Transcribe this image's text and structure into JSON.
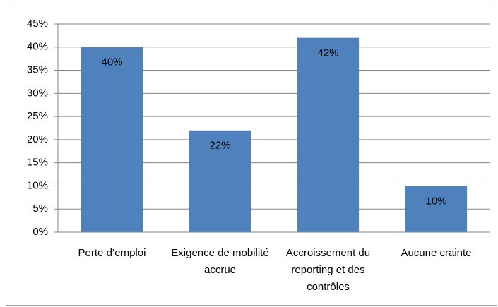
{
  "chart_data": {
    "type": "bar",
    "categories": [
      "Perte d’emploi",
      "Exigence de mobilité accrue",
      "Accroissement du reporting et des contrôles",
      "Aucune crainte"
    ],
    "values": [
      40,
      22,
      42,
      10
    ],
    "value_labels": [
      "40%",
      "22%",
      "42%",
      "10%"
    ],
    "color": "#4f81bd",
    "ylim": [
      0,
      45
    ],
    "yticks": [
      {
        "value": 0,
        "label": "0%"
      },
      {
        "value": 5,
        "label": "5%"
      },
      {
        "value": 10,
        "label": "10%"
      },
      {
        "value": 15,
        "label": "15%"
      },
      {
        "value": 20,
        "label": "20%"
      },
      {
        "value": 25,
        "label": "25%"
      },
      {
        "value": 30,
        "label": "30%"
      },
      {
        "value": 35,
        "label": "35%"
      },
      {
        "value": 40,
        "label": "40%"
      },
      {
        "value": 45,
        "label": "45%"
      }
    ],
    "grid": true
  }
}
